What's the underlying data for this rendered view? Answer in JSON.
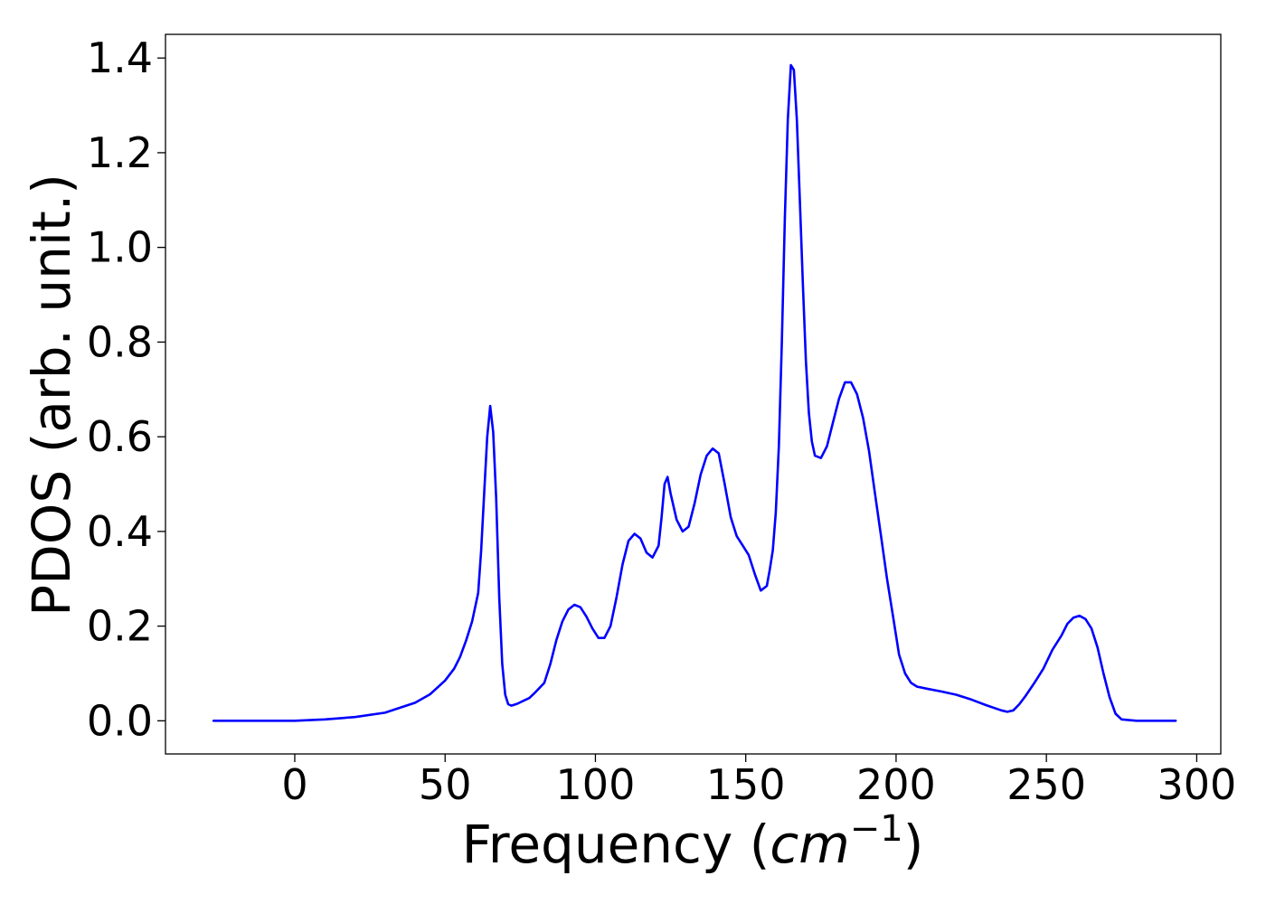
{
  "chart_data": {
    "type": "line",
    "title": "",
    "xlabel": "Frequency (",
    "xlabel_math": "cm",
    "xlabel_exp": "−1",
    "xlabel_close": ")",
    "ylabel": "PDOS (arb. unit.)",
    "xlim": [
      -43,
      308
    ],
    "ylim": [
      -0.07,
      1.45
    ],
    "xticks": [
      0,
      50,
      100,
      150,
      200,
      250,
      300
    ],
    "xtick_labels": [
      "0",
      "50",
      "100",
      "150",
      "200",
      "250",
      "300"
    ],
    "yticks": [
      0.0,
      0.2,
      0.4,
      0.6,
      0.8,
      1.0,
      1.2,
      1.4
    ],
    "ytick_labels": [
      "0.0",
      "0.2",
      "0.4",
      "0.6",
      "0.8",
      "1.0",
      "1.2",
      "1.4"
    ],
    "grid": false,
    "legend": "none",
    "series": [
      {
        "color": "#0000ff",
        "x": [
          -27,
          0,
          10,
          20,
          30,
          40,
          45,
          50,
          53,
          55,
          57,
          59,
          61,
          62,
          63,
          64,
          65,
          66,
          67,
          68,
          69,
          70,
          71,
          72,
          74,
          76,
          78,
          80,
          83,
          85,
          87,
          89,
          91,
          93,
          95,
          97,
          99,
          101,
          103,
          105,
          107,
          109,
          111,
          113,
          115,
          117,
          119,
          121,
          122,
          123,
          124,
          125,
          127,
          129,
          131,
          133,
          135,
          137,
          139,
          141,
          143,
          145,
          147,
          149,
          151,
          153,
          155,
          157,
          158,
          159,
          160,
          161,
          162,
          163,
          164,
          165,
          166,
          167,
          168,
          169,
          170,
          171,
          172,
          173,
          175,
          177,
          179,
          181,
          183,
          185,
          187,
          189,
          191,
          193,
          195,
          197,
          199,
          201,
          203,
          205,
          207,
          210,
          215,
          220,
          225,
          230,
          235,
          237,
          239,
          241,
          243,
          246,
          249,
          252,
          255,
          257,
          259,
          261,
          263,
          265,
          267,
          269,
          271,
          273,
          275,
          280,
          290,
          293
        ],
        "y": [
          0.0,
          0.0,
          0.003,
          0.008,
          0.017,
          0.038,
          0.056,
          0.085,
          0.11,
          0.135,
          0.17,
          0.21,
          0.27,
          0.36,
          0.48,
          0.6,
          0.665,
          0.61,
          0.47,
          0.26,
          0.12,
          0.055,
          0.035,
          0.032,
          0.036,
          0.042,
          0.048,
          0.06,
          0.08,
          0.12,
          0.17,
          0.21,
          0.235,
          0.245,
          0.24,
          0.22,
          0.195,
          0.175,
          0.175,
          0.2,
          0.26,
          0.33,
          0.38,
          0.395,
          0.385,
          0.355,
          0.345,
          0.37,
          0.43,
          0.5,
          0.515,
          0.48,
          0.425,
          0.4,
          0.41,
          0.46,
          0.52,
          0.56,
          0.575,
          0.565,
          0.5,
          0.43,
          0.39,
          0.37,
          0.35,
          0.31,
          0.275,
          0.285,
          0.32,
          0.36,
          0.44,
          0.58,
          0.8,
          1.06,
          1.27,
          1.385,
          1.375,
          1.27,
          1.1,
          0.92,
          0.76,
          0.65,
          0.59,
          0.56,
          0.555,
          0.58,
          0.63,
          0.68,
          0.715,
          0.715,
          0.69,
          0.64,
          0.57,
          0.48,
          0.39,
          0.3,
          0.22,
          0.14,
          0.1,
          0.08,
          0.072,
          0.068,
          0.062,
          0.055,
          0.045,
          0.033,
          0.022,
          0.019,
          0.022,
          0.035,
          0.052,
          0.08,
          0.11,
          0.15,
          0.18,
          0.205,
          0.218,
          0.222,
          0.215,
          0.195,
          0.155,
          0.1,
          0.05,
          0.015,
          0.003,
          0.0,
          0.0,
          0.0
        ]
      }
    ]
  }
}
